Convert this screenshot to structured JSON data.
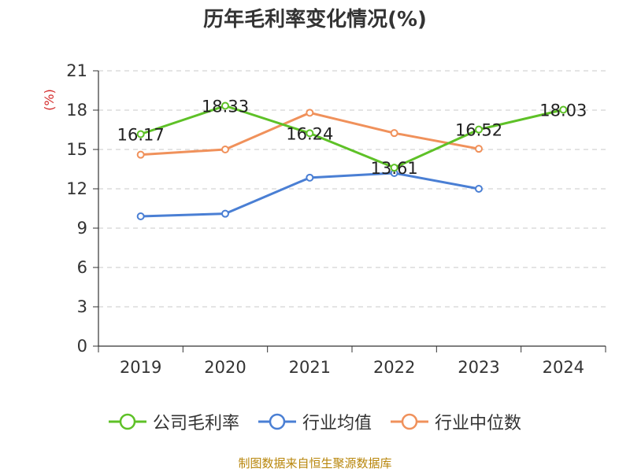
{
  "chart_data": {
    "type": "line",
    "title": "历年毛利率变化情况(%)",
    "ylabel": "(%)",
    "categories": [
      "2019",
      "2020",
      "2021",
      "2022",
      "2023",
      "2024"
    ],
    "ylim": [
      0,
      21
    ],
    "yticks": [
      0,
      3,
      6,
      9,
      12,
      15,
      18,
      21
    ],
    "grid": true,
    "legend_position": "bottom",
    "series": [
      {
        "name": "公司毛利率",
        "color": "#5ec127",
        "values": [
          16.17,
          18.33,
          16.24,
          13.61,
          16.52,
          18.03
        ],
        "labels": [
          "16.17",
          "18.33",
          "16.24",
          "13.61",
          "16.52",
          "18.03"
        ]
      },
      {
        "name": "行业均值",
        "color": "#4a7fd4",
        "values": [
          9.9,
          10.1,
          12.85,
          13.2,
          12.0,
          null
        ]
      },
      {
        "name": "行业中位数",
        "color": "#f0915b",
        "values": [
          14.6,
          15.0,
          17.8,
          16.25,
          15.05,
          null
        ]
      }
    ]
  },
  "source": "制图数据来自恒生聚源数据库"
}
